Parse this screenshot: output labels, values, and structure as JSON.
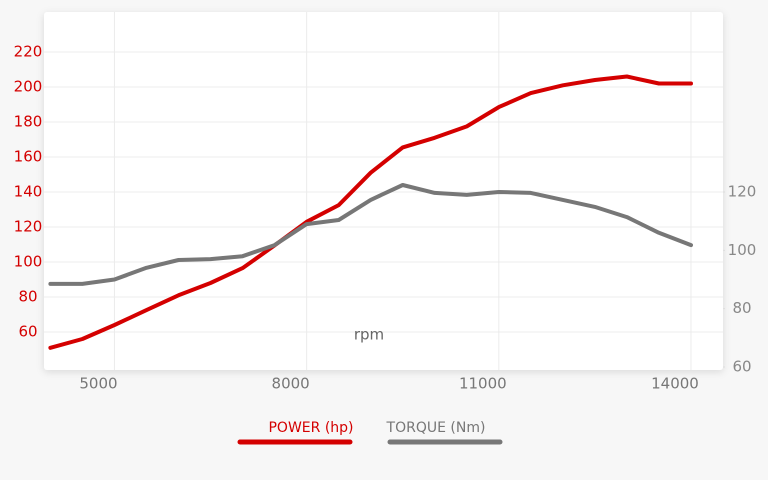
{
  "chart_data": {
    "type": "line",
    "x": [
      4000,
      4500,
      5000,
      5500,
      6000,
      6500,
      7000,
      7500,
      8000,
      8500,
      9000,
      9500,
      10000,
      10500,
      11000,
      11500,
      12000,
      12500,
      13000,
      13500,
      14000
    ],
    "series": [
      {
        "name": "POWER (hp)",
        "color": "#d40000",
        "axis": "y",
        "values": [
          51,
          56,
          64,
          72.5,
          81,
          88,
          96.5,
          109.5,
          123,
          132.5,
          151,
          165.5,
          171,
          177.5,
          188.5,
          196.5,
          201,
          204,
          206,
          202,
          202
        ]
      },
      {
        "name": "TORQUE (Nm)",
        "color": "#777777",
        "axis": "y2",
        "values": [
          88.5,
          88.5,
          90,
          94,
          96.7,
          97,
          98,
          101.8,
          109,
          110.4,
          117.3,
          122.4,
          119.7,
          119,
          120,
          119.7,
          117.3,
          114.9,
          111.4,
          106,
          101.8
        ]
      }
    ],
    "xlabel": "rpm",
    "xlim": [
      3900,
      14500
    ],
    "xticks": [
      5000,
      8000,
      11000,
      14000
    ],
    "ylim": [
      40,
      240
    ],
    "yticks": [
      60,
      80,
      100,
      120,
      140,
      160,
      180,
      200,
      220
    ],
    "y2lim": [
      60,
      180
    ],
    "y2ticks": [
      60,
      80,
      100,
      120
    ],
    "grid": true
  }
}
